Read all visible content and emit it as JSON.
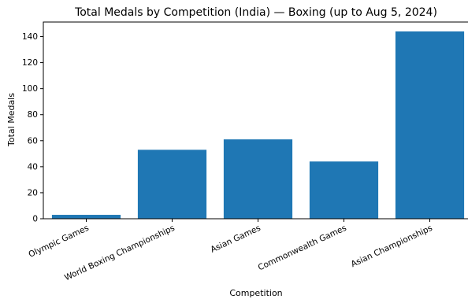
{
  "chart_data": {
    "type": "bar",
    "title": "Total Medals by Competition (India) — Boxing (up to Aug 5, 2024)",
    "xlabel": "Competition",
    "ylabel": "Total Medals",
    "categories": [
      "Olympic Games",
      "World Boxing Championships",
      "Asian Games",
      "Commonwealth Games",
      "Asian Championships"
    ],
    "values": [
      3,
      53,
      61,
      44,
      144
    ],
    "ylim": [
      0,
      151.2
    ],
    "yticks": [
      0,
      20,
      40,
      60,
      80,
      100,
      120,
      140
    ],
    "grid": false,
    "bar_color": "#1f77b4"
  }
}
